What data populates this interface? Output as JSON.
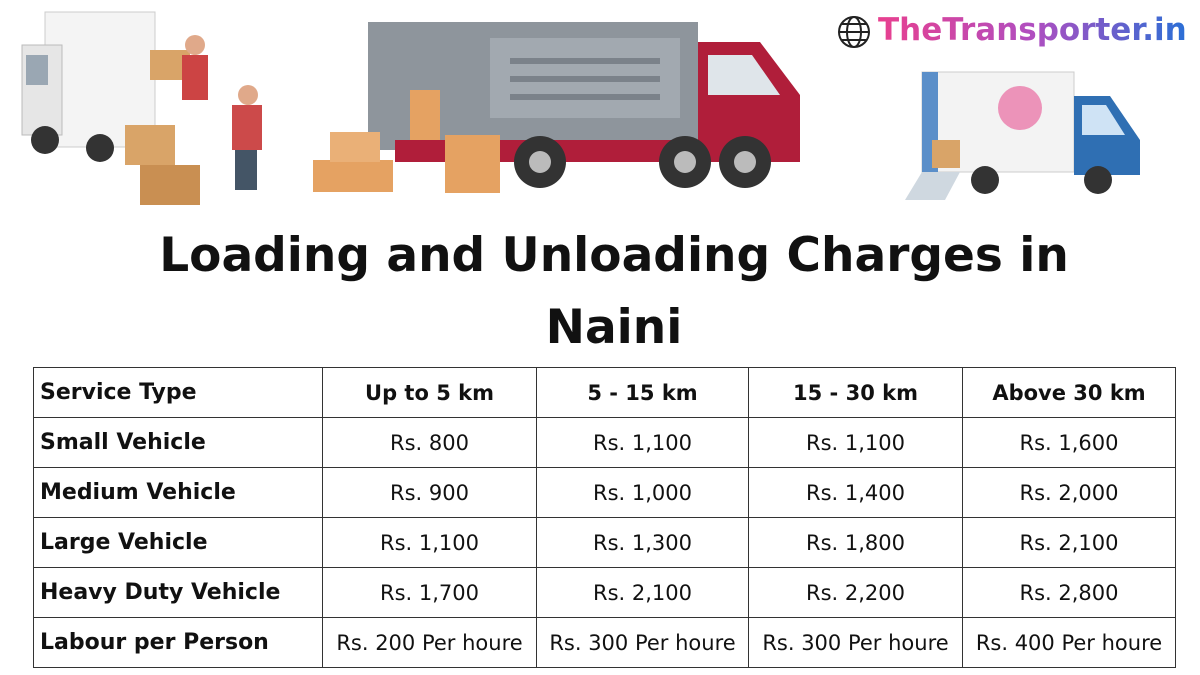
{
  "header": {
    "logo": "TheTransporter.in",
    "title_line1": "Loading and Unloading Charges in",
    "title_line2": "Naini"
  },
  "table": {
    "columns": [
      "Service Type",
      "Up to 5 km",
      "5 - 15 km",
      "15 - 30 km",
      "Above 30 km"
    ],
    "rows": [
      [
        "Small Vehicle",
        "Rs. 800",
        "Rs. 1,100",
        "Rs. 1,100",
        "Rs. 1,600"
      ],
      [
        "Medium Vehicle",
        "Rs. 900",
        "Rs. 1,000",
        "Rs. 1,400",
        "Rs. 2,000"
      ],
      [
        "Large Vehicle",
        "Rs. 1,100",
        "Rs. 1,300",
        "Rs. 1,800",
        "Rs. 2,100"
      ],
      [
        "Heavy Duty Vehicle",
        "Rs. 1,700",
        "Rs. 2,100",
        "Rs. 2,200",
        "Rs. 2,800"
      ],
      [
        "Labour per Person",
        "Rs. 200 Per houre",
        "Rs. 300 Per houre",
        "Rs. 300 Per houre",
        "Rs. 400 Per houre"
      ]
    ]
  }
}
